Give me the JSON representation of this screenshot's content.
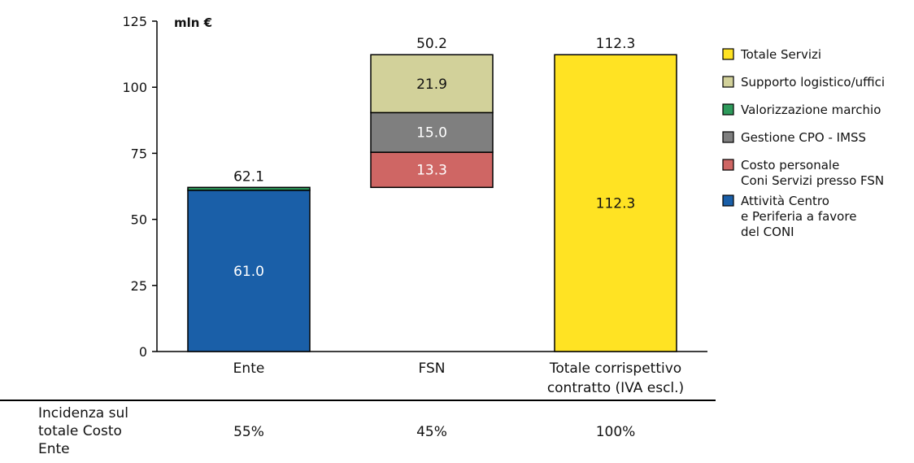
{
  "chart_data": {
    "type": "bar",
    "stacked": true,
    "unit_label": "mln €",
    "ylim": [
      0,
      125
    ],
    "yticks": [
      "0",
      "25",
      "50",
      "75",
      "100",
      "125"
    ],
    "categories": [
      {
        "lines": [
          "Ente"
        ]
      },
      {
        "lines": [
          "FSN"
        ]
      },
      {
        "lines": [
          "Totale corrispettivo",
          "contratto (IVA escl.)"
        ]
      }
    ],
    "series": [
      {
        "key": "attivita",
        "name_lines": [
          "Attività Centro",
          "e Periferia a favore",
          "del CONI"
        ],
        "color": "#1a5fa8",
        "text_color": "#ffffff"
      },
      {
        "key": "costo",
        "name_lines": [
          "Costo personale",
          "Coni Servizi presso FSN"
        ],
        "color": "#cf6664",
        "text_color": "#ffffff"
      },
      {
        "key": "cpo",
        "name_lines": [
          "Gestione CPO - IMSS"
        ],
        "color": "#7f7f7f",
        "text_color": "#ffffff"
      },
      {
        "key": "marchio",
        "name_lines": [
          "Valorizzazione marchio"
        ],
        "color": "#2e9a5b",
        "text_color": "#ffffff"
      },
      {
        "key": "supporto",
        "name_lines": [
          "Supporto logistico/uffici"
        ],
        "color": "#d2d19a",
        "text_color": "#111111"
      },
      {
        "key": "totale",
        "name_lines": [
          "Totale Servizi"
        ],
        "color": "#ffe323",
        "text_color": "#111111"
      }
    ],
    "bars": [
      {
        "category_index": 0,
        "total_label": "62.1",
        "total": 62.1,
        "segments": [
          {
            "series": "attivita",
            "from": 0,
            "to": 61.0,
            "label": "61.0"
          },
          {
            "series": "marchio",
            "from": 61.0,
            "to": 62.1,
            "label": ""
          }
        ]
      },
      {
        "category_index": 1,
        "total_label": "50.2",
        "total": 112.3,
        "segments": [
          {
            "series": "costo",
            "from": 62.1,
            "to": 75.4,
            "label": "13.3"
          },
          {
            "series": "cpo",
            "from": 75.4,
            "to": 90.4,
            "label": "15.0"
          },
          {
            "series": "supporto",
            "from": 90.4,
            "to": 112.3,
            "label": "21.9"
          }
        ]
      },
      {
        "category_index": 2,
        "total_label": "112.3",
        "total": 112.3,
        "segments": [
          {
            "series": "totale",
            "from": 0,
            "to": 112.3,
            "label": "112.3"
          }
        ]
      }
    ],
    "legend_order": [
      "totale",
      "supporto",
      "marchio",
      "cpo",
      "costo",
      "attivita"
    ],
    "legend_position": "right",
    "grid": false
  },
  "incidenza": {
    "label_lines": [
      "Incidenza sul",
      "totale Costo",
      "Ente"
    ],
    "values": [
      "55%",
      "45%",
      "100%"
    ]
  }
}
